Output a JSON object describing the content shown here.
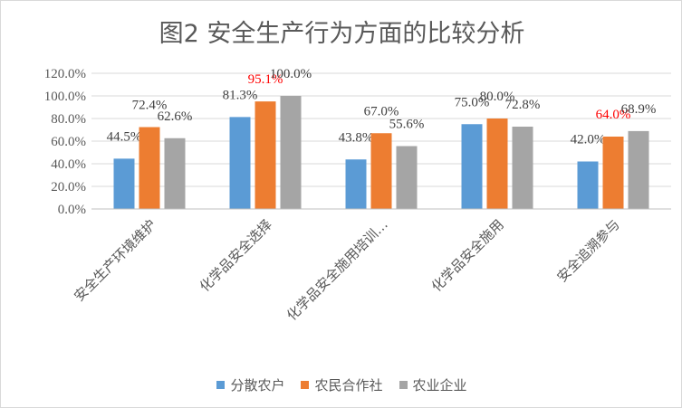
{
  "chart_data": {
    "type": "bar",
    "title": "图2 安全生产行为方面的比较分析",
    "categories": [
      "安全生产环境维护",
      "化学品安全选择",
      "化学品安全施用培训…",
      "化学品安全施用",
      "安全追溯参与"
    ],
    "series": [
      {
        "name": "分散农户",
        "color": "#5b9bd5",
        "values": [
          44.5,
          81.3,
          43.8,
          75.0,
          42.0
        ],
        "labels": [
          "44.5%",
          "81.3%",
          "43.8%",
          "75.0%",
          "42.0%"
        ]
      },
      {
        "name": "农民合作社",
        "color": "#ed7d31",
        "values": [
          72.4,
          95.1,
          67.0,
          80.0,
          64.0
        ],
        "labels": [
          "72.4%",
          "95.1%",
          "67.0%",
          "80.0%",
          "64.0%"
        ]
      },
      {
        "name": "农业企业",
        "color": "#a5a5a5",
        "values": [
          62.6,
          100.0,
          55.6,
          72.8,
          68.9
        ],
        "labels": [
          "62.6%",
          "100.0%",
          "55.6%",
          "72.8%",
          "68.9%"
        ]
      }
    ],
    "highlighted_labels": [
      [
        1,
        1
      ],
      [
        1,
        4
      ]
    ],
    "label_color": "#404040",
    "highlight_color": "#ff0000",
    "ylim": [
      0,
      120
    ],
    "yticks": [
      0,
      20,
      40,
      60,
      80,
      100,
      120
    ],
    "ytick_labels": [
      "0.0%",
      "20.0%",
      "40.0%",
      "60.0%",
      "80.0%",
      "100.0%",
      "120.0%"
    ],
    "grid": true,
    "legend_position": "bottom"
  }
}
